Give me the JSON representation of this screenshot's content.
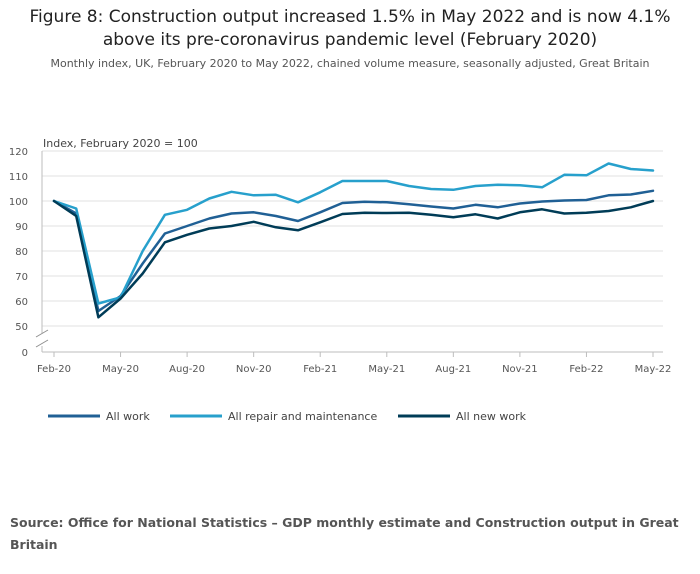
{
  "figure": {
    "title_line1": "Figure 8: Construction output increased 1.5% in May 2022 and is now 4.1%",
    "title_line2": "above its pre-coronavirus pandemic level (February 2020)",
    "subtitle": "Monthly index, UK, February 2020 to May 2022, chained volume measure, seasonally adjusted, Great Britain",
    "source": "Source: Office for National Statistics – GDP monthly estimate and Construction output in Great Britain"
  },
  "chart_data": {
    "type": "line",
    "ylabel": "Index, February 2020 = 100",
    "xlabel": "",
    "x": [
      "Feb-20",
      "Mar-20",
      "Apr-20",
      "May-20",
      "Jun-20",
      "Jul-20",
      "Aug-20",
      "Sep-20",
      "Oct-20",
      "Nov-20",
      "Dec-20",
      "Jan-21",
      "Feb-21",
      "Mar-21",
      "Apr-21",
      "May-21",
      "Jun-21",
      "Jul-21",
      "Aug-21",
      "Sep-21",
      "Oct-21",
      "Nov-21",
      "Dec-21",
      "Jan-22",
      "Feb-22",
      "Mar-22",
      "Apr-22",
      "May-22"
    ],
    "x_tick_labels": [
      "Feb-20",
      "May-20",
      "Aug-20",
      "Nov-20",
      "Feb-21",
      "May-21",
      "Aug-21",
      "Nov-21",
      "Feb-22",
      "May-22"
    ],
    "y_ticks": [
      0,
      50,
      60,
      70,
      80,
      90,
      100,
      110,
      120
    ],
    "ylim": [
      0,
      120
    ],
    "axis_break": "between 0 and 50",
    "grid": true,
    "legend_position": "bottom",
    "series": [
      {
        "name": "All work",
        "color": "#206095",
        "values": [
          100,
          95,
          56,
          62,
          75,
          87,
          90,
          93,
          95,
          95.5,
          94,
          92,
          95.5,
          99.2,
          99.7,
          99.5,
          98.7,
          97.8,
          97,
          98.5,
          97.5,
          99,
          99.8,
          100.2,
          100.4,
          102.3,
          102.6,
          104.1
        ]
      },
      {
        "name": "All repair and maintenance",
        "color": "#27A0CC",
        "values": [
          100,
          97,
          59,
          61.5,
          80,
          94.5,
          96.5,
          101,
          103.7,
          102.3,
          102.5,
          99.5,
          103.5,
          108,
          108,
          108,
          106,
          104.8,
          104.5,
          106,
          106.5,
          106.3,
          105.5,
          110.5,
          110.3,
          115,
          112.8,
          112.2
        ]
      },
      {
        "name": "All new work",
        "color": "#003C57",
        "values": [
          100,
          94,
          53.5,
          61,
          71,
          83.5,
          86.5,
          89,
          90,
          91.7,
          89.5,
          88.3,
          91.5,
          94.8,
          95.3,
          95.2,
          95.3,
          94.5,
          93.5,
          94.7,
          93,
          95.5,
          96.7,
          95,
          95.3,
          96,
          97.5,
          100
        ]
      }
    ]
  }
}
